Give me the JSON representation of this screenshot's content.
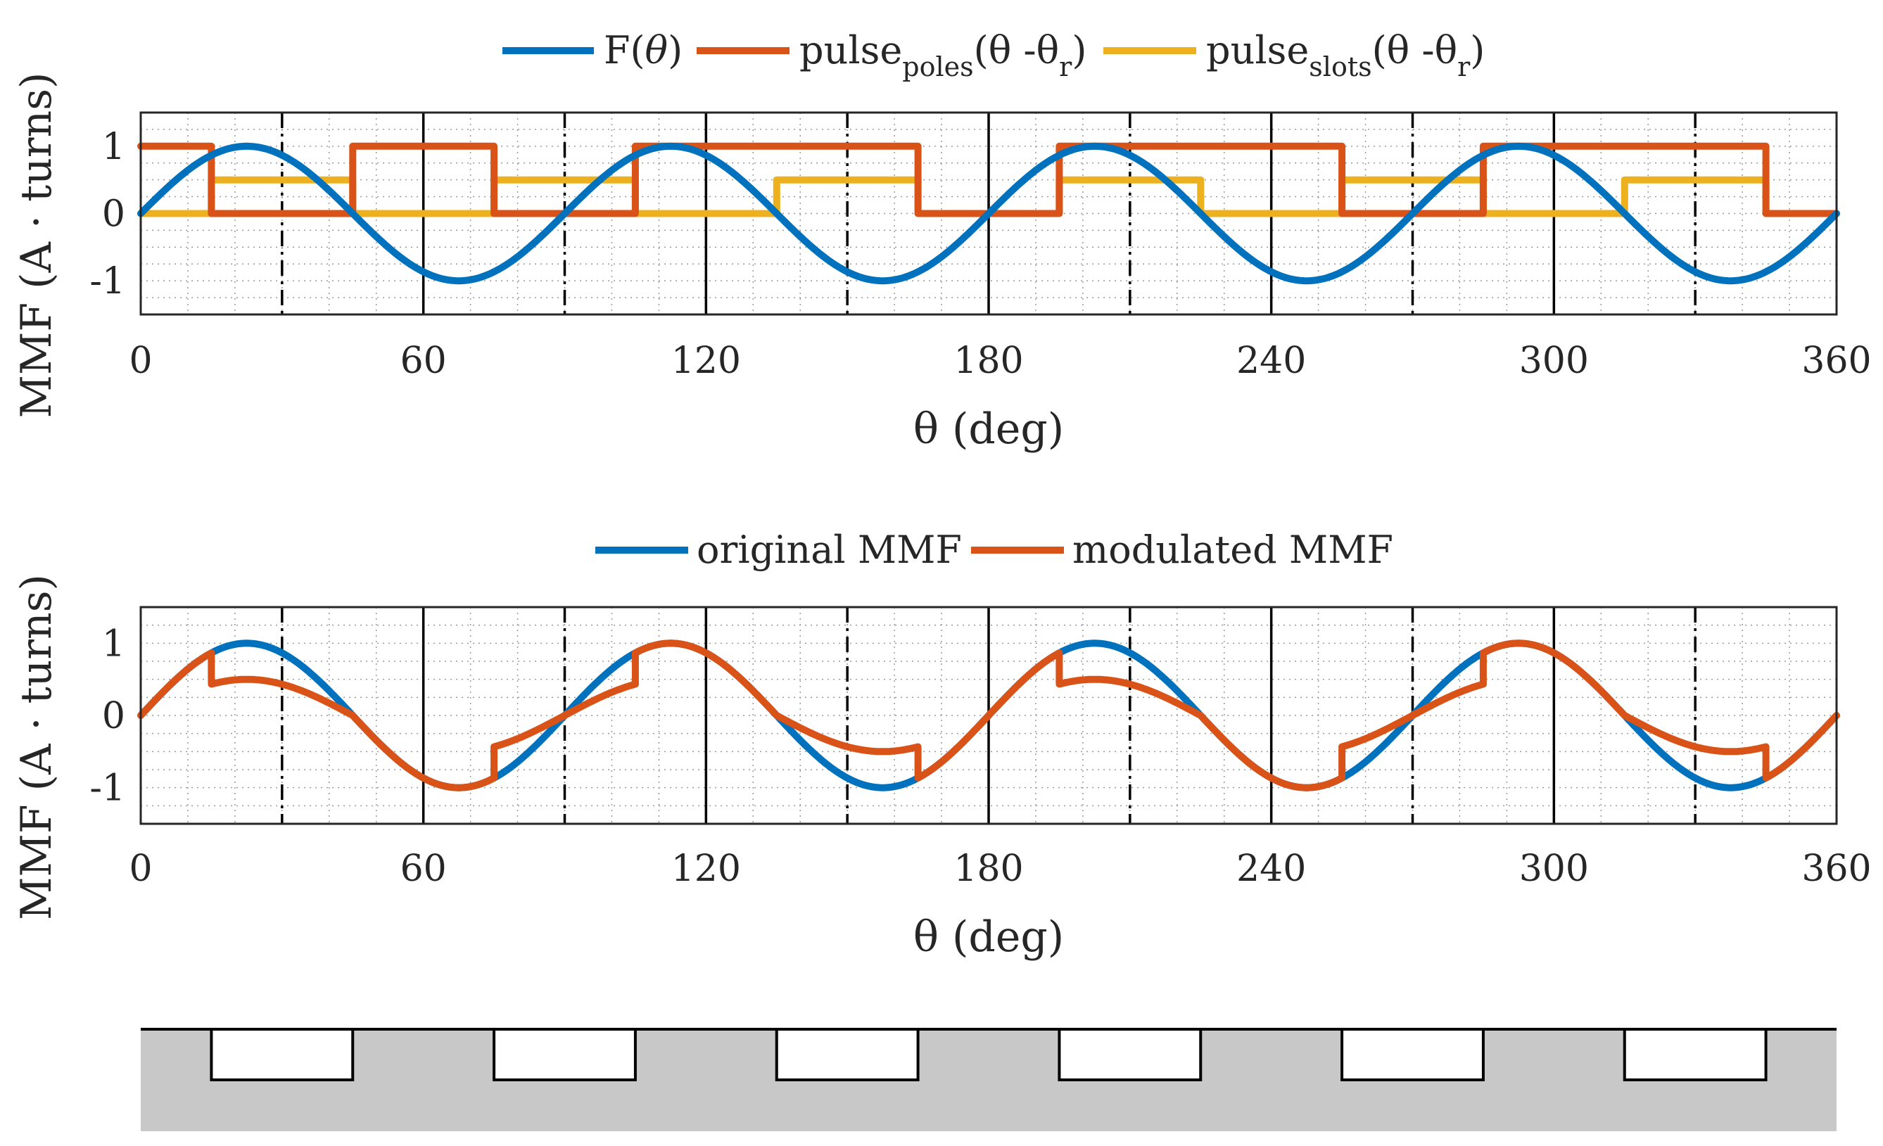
{
  "chart_data": [
    {
      "type": "line",
      "title": "",
      "xlabel": "θ (deg)",
      "ylabel": "MMF (A · turns)",
      "xlim": [
        0,
        360
      ],
      "ylim": [
        -1.5,
        1.5
      ],
      "xticks": [
        "0",
        "60",
        "120",
        "180",
        "240",
        "300",
        "360"
      ],
      "yticks": [
        "1",
        "0",
        "-1"
      ],
      "grid": "minor dotted",
      "legend_position": "top, outside",
      "legend": [
        {
          "main": "F(",
          "italic": "θ",
          "sub": "",
          "tail": ")"
        },
        {
          "main": "pulse",
          "sub": "poles",
          "paren": "(θ -θ",
          "sub2": "r",
          "tail": ")"
        },
        {
          "main": "pulse",
          "sub": "slots",
          "paren": "(θ -θ",
          "sub2": "r",
          "tail": ")"
        }
      ],
      "series": [
        {
          "name": "F(θ)",
          "color": "#0072BD",
          "formula": "sin(4θ)",
          "amplitude": 1,
          "pole_pairs": 4
        },
        {
          "name": "pulse_poles(θ -θr)",
          "color": "#D95319",
          "high_value": 1,
          "low_value": 0,
          "high_intervals": [
            [
              0,
              15
            ],
            [
              45,
              75
            ],
            [
              105,
              165
            ],
            [
              195,
              255
            ],
            [
              285,
              345
            ]
          ]
        },
        {
          "name": "pulse_slots(θ -θr)",
          "color": "#EDB120",
          "high_value": 0.5,
          "low_value": 0,
          "high_intervals": [
            [
              15,
              45
            ],
            [
              75,
              105
            ],
            [
              135,
              165
            ],
            [
              195,
              225
            ],
            [
              255,
              285
            ],
            [
              315,
              345
            ]
          ]
        }
      ],
      "vertical_solid_lines_x": [
        60,
        120,
        180,
        240,
        300
      ],
      "vertical_dashdot_lines_x": [
        30,
        90,
        150,
        210,
        270,
        330
      ]
    },
    {
      "type": "line",
      "title": "",
      "xlabel": "θ (deg)",
      "ylabel": "MMF (A · turns)",
      "xlim": [
        0,
        360
      ],
      "ylim": [
        -1.5,
        1.5
      ],
      "xticks": [
        "0",
        "60",
        "120",
        "180",
        "240",
        "300",
        "360"
      ],
      "yticks": [
        "1",
        "0",
        "-1"
      ],
      "grid": "minor dotted",
      "legend_position": "top, outside",
      "legend": [
        "original MMF",
        "modulated MMF"
      ],
      "series": [
        {
          "name": "original MMF",
          "color": "#0072BD",
          "formula": "sin(4θ)"
        },
        {
          "name": "modulated MMF",
          "color": "#D95319",
          "formula": "sin(4θ) × 0.5 inside slot intervals, else sin(4θ)",
          "slot_intervals": [
            [
              15,
              45
            ],
            [
              75,
              105
            ],
            [
              135,
              165
            ],
            [
              195,
              225
            ],
            [
              255,
              285
            ],
            [
              315,
              345
            ]
          ],
          "slot_factor": 0.5
        }
      ],
      "vertical_solid_lines_x": [
        60,
        120,
        180,
        240,
        300
      ],
      "vertical_dashdot_lines_x": [
        30,
        90,
        150,
        210,
        270,
        330
      ]
    }
  ],
  "stator": {
    "fill_color": "#c8c8c8",
    "slot_intervals": [
      [
        15,
        45
      ],
      [
        75,
        105
      ],
      [
        135,
        165
      ],
      [
        195,
        225
      ],
      [
        255,
        285
      ],
      [
        315,
        345
      ]
    ]
  }
}
